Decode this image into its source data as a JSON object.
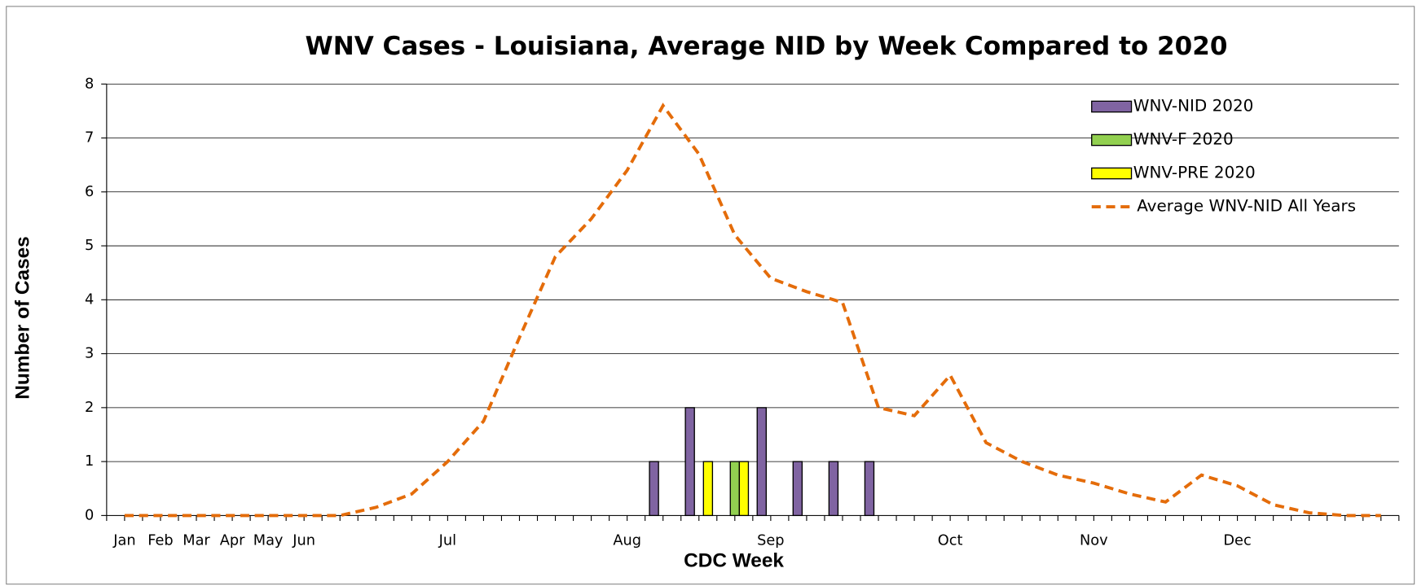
{
  "chart_data": {
    "type": "bar",
    "title": "WNV Cases - Louisiana, Average NID by Week Compared to 2020",
    "x_label": "CDC Week",
    "y_label": "Number of  Cases",
    "categories": [
      "Jan",
      "Feb",
      "Mar",
      "Apr",
      "May",
      "Jun",
      null,
      null,
      null,
      "Jul",
      null,
      null,
      null,
      null,
      "Aug",
      null,
      null,
      null,
      "Sep",
      null,
      null,
      null,
      null,
      "Oct",
      null,
      null,
      null,
      "Nov",
      null,
      null,
      null,
      "Dec",
      null,
      null,
      null,
      null
    ],
    "series": [
      {
        "name": "WNV-NID 2020",
        "color": "#8064a2",
        "values": [
          0,
          0,
          0,
          0,
          0,
          0,
          0,
          0,
          0,
          0,
          0,
          0,
          0,
          0,
          0,
          1,
          2,
          0,
          2,
          1,
          1,
          1,
          0,
          0,
          0,
          0,
          0,
          0,
          0,
          0,
          0,
          0,
          0,
          0,
          0,
          0
        ]
      },
      {
        "name": "WNV-F 2020",
        "color": "#92d050",
        "values": [
          0,
          0,
          0,
          0,
          0,
          0,
          0,
          0,
          0,
          0,
          0,
          0,
          0,
          0,
          0,
          0,
          0,
          1,
          0,
          0,
          0,
          0,
          0,
          0,
          0,
          0,
          0,
          0,
          0,
          0,
          0,
          0,
          0,
          0,
          0,
          0
        ]
      },
      {
        "name": "WNV-PRE 2020",
        "color": "#ffff00",
        "values": [
          0,
          0,
          0,
          0,
          0,
          0,
          0,
          0,
          0,
          0,
          0,
          0,
          0,
          0,
          0,
          0,
          1,
          1,
          0,
          0,
          0,
          0,
          0,
          0,
          0,
          0,
          0,
          0,
          0,
          0,
          0,
          0,
          0,
          0,
          0,
          0
        ]
      },
      {
        "name": "Average WNV-NID All Years",
        "color": "#e46c0a",
        "type": "line",
        "dashed": true,
        "values": [
          0,
          0,
          0,
          0,
          0,
          0,
          0,
          0.15,
          0.4,
          1.0,
          1.75,
          3.3,
          4.8,
          5.5,
          6.4,
          7.6,
          6.7,
          5.2,
          4.4,
          4.15,
          3.95,
          2.0,
          1.85,
          2.6,
          1.35,
          1.0,
          0.75,
          0.6,
          0.4,
          0.25,
          0.75,
          0.55,
          0.2,
          0.05,
          0,
          0
        ]
      }
    ],
    "ylim": [
      0,
      8
    ],
    "yticks": [
      0,
      1,
      2,
      3,
      4,
      5,
      6,
      7,
      8
    ],
    "grid": true,
    "legend": "top-right"
  }
}
